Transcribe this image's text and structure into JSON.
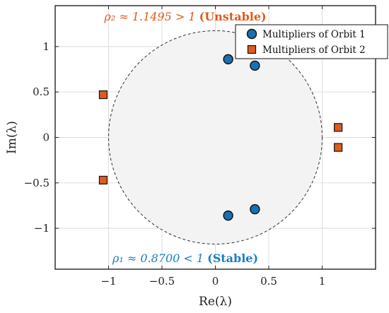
{
  "chart_data": {
    "type": "scatter",
    "xlabel": "Re(λ)",
    "ylabel": "Im(λ)",
    "xlim": [
      -1.5,
      1.5
    ],
    "ylim": [
      -1.45,
      1.45
    ],
    "xticks": [
      -1,
      -0.5,
      0,
      0.5,
      1
    ],
    "yticks": [
      -1,
      -0.5,
      0,
      0.5,
      1
    ],
    "xtick_labels": [
      "−1",
      "−0.5",
      "0",
      "0.5",
      "1"
    ],
    "ytick_labels": [
      "−1",
      "−0.5",
      "0",
      "0.5",
      "1"
    ],
    "grid": true,
    "unit_circle": {
      "radius": 1,
      "fill": "#f2f2f2",
      "stroke": "#333333",
      "dashed": true
    },
    "legend_position": "top-right",
    "series": [
      {
        "name": "Multipliers of Orbit 1",
        "marker": "circle",
        "color": "#1a6fb0",
        "points": [
          [
            0.12,
            0.86
          ],
          [
            0.37,
            0.79
          ],
          [
            0.12,
            -0.86
          ],
          [
            0.37,
            -0.79
          ]
        ]
      },
      {
        "name": "Multipliers of Orbit 2",
        "marker": "square",
        "color": "#e05a1f",
        "points": [
          [
            -1.05,
            0.47
          ],
          [
            -1.05,
            -0.47
          ],
          [
            1.15,
            0.11
          ],
          [
            1.15,
            -0.11
          ]
        ]
      }
    ],
    "annotations": [
      {
        "id": "top",
        "math": "ρ₂ ≈ 1.1495 > 1",
        "bold": "(Unstable)",
        "color": "#e05a1f"
      },
      {
        "id": "bottom",
        "math": "ρ₁ ≈ 0.8700 < 1",
        "bold": "(Stable)",
        "color": "#1a7fc1"
      }
    ]
  }
}
